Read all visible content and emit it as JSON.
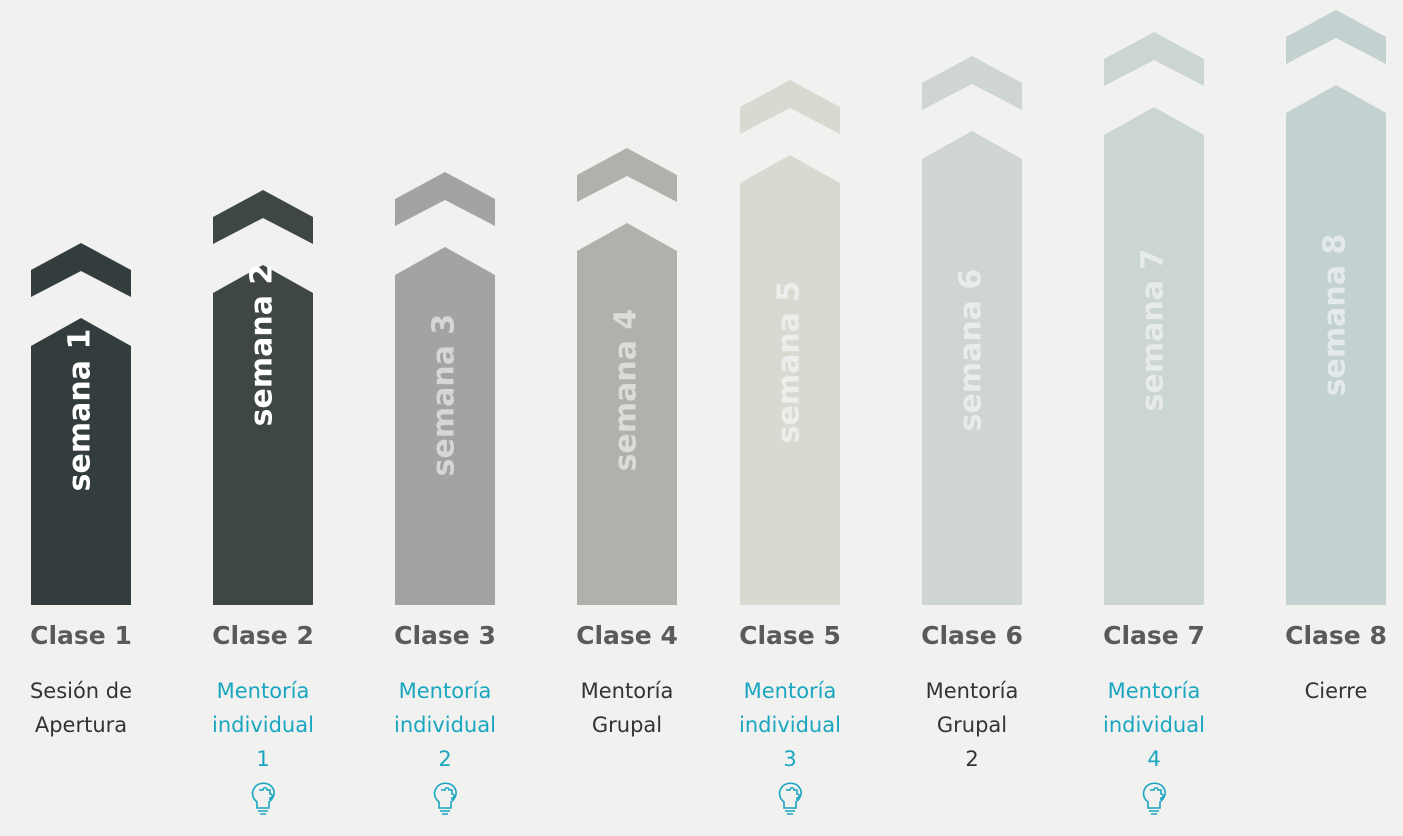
{
  "weeks": [
    {
      "label": "semana 1",
      "clase": "Clase 1",
      "description": [
        "Sesión de",
        "Apertura"
      ],
      "highlight": false,
      "color": "#333d3d"
    },
    {
      "label": "semana 2",
      "clase": "Clase 2",
      "description": [
        "Mentoría",
        "individual",
        "1"
      ],
      "highlight": true,
      "color": "#3f4745"
    },
    {
      "label": "semana 3",
      "clase": "Clase 3",
      "description": [
        "Mentoría",
        "individual",
        "2"
      ],
      "highlight": true,
      "color": "#a3a4a2"
    },
    {
      "label": "semana 4",
      "clase": "Clase 4",
      "description": [
        "Mentoría",
        "Grupal"
      ],
      "highlight": false,
      "color": "#b0b1ad"
    },
    {
      "label": "semana 5",
      "clase": "Clase 5",
      "description": [
        "Mentoría",
        "individual",
        "3"
      ],
      "highlight": true,
      "color": "#d8dad2"
    },
    {
      "label": "semana 6",
      "clase": "Clase 6",
      "description": [
        "Mentoría",
        "Grupal",
        "2"
      ],
      "highlight": false,
      "color": "#cfd5d0"
    },
    {
      "label": "semana 7",
      "clase": "Clase 7",
      "description": [
        "Mentoría",
        "individual",
        "4"
      ],
      "highlight": true,
      "color": "#cbd5d2"
    },
    {
      "label": "semana 8",
      "clase": "Clase 8",
      "description": [
        "Cierre"
      ],
      "highlight": false,
      "color": "#c3d1d1"
    }
  ]
}
